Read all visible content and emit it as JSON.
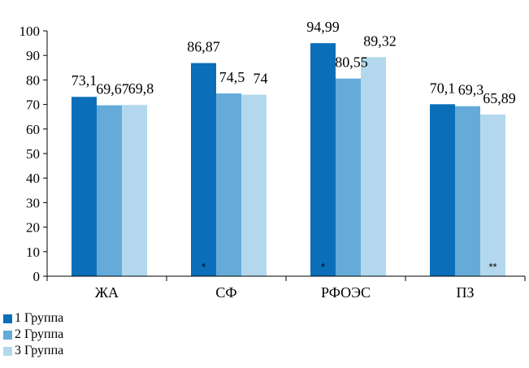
{
  "chart_data": {
    "type": "bar",
    "categories": [
      "ЖА",
      "СФ",
      "РФОЭС",
      "ПЗ"
    ],
    "series": [
      {
        "name": "1 Группа",
        "values": [
          73.1,
          86.87,
          94.99,
          70.1
        ],
        "labels": [
          "73,1",
          "86,87",
          "94,99",
          "70,1"
        ],
        "color": "#0a6fb8"
      },
      {
        "name": "2 Группа",
        "values": [
          69.67,
          74.5,
          80.55,
          69.3
        ],
        "labels": [
          "69,67",
          "74,5",
          "80,55",
          "69,3"
        ],
        "color": "#64abd9"
      },
      {
        "name": "3 Группа",
        "values": [
          69.8,
          74,
          89.32,
          65.89
        ],
        "labels": [
          "69,8",
          "74",
          "89,32",
          "65,89"
        ],
        "color": "#b3d8ed"
      }
    ],
    "markers": [
      {
        "category": "СФ",
        "series": "1 Группа",
        "text": "*"
      },
      {
        "category": "РФОЭС",
        "series": "1 Группа",
        "text": "*"
      },
      {
        "category": "ПЗ",
        "series": "3 Группа",
        "text": "**"
      }
    ],
    "ylim": [
      0,
      100
    ],
    "yticks": [
      0,
      10,
      20,
      30,
      40,
      50,
      60,
      70,
      80,
      90,
      100
    ],
    "grid": false,
    "legend_position": "bottom-left"
  }
}
